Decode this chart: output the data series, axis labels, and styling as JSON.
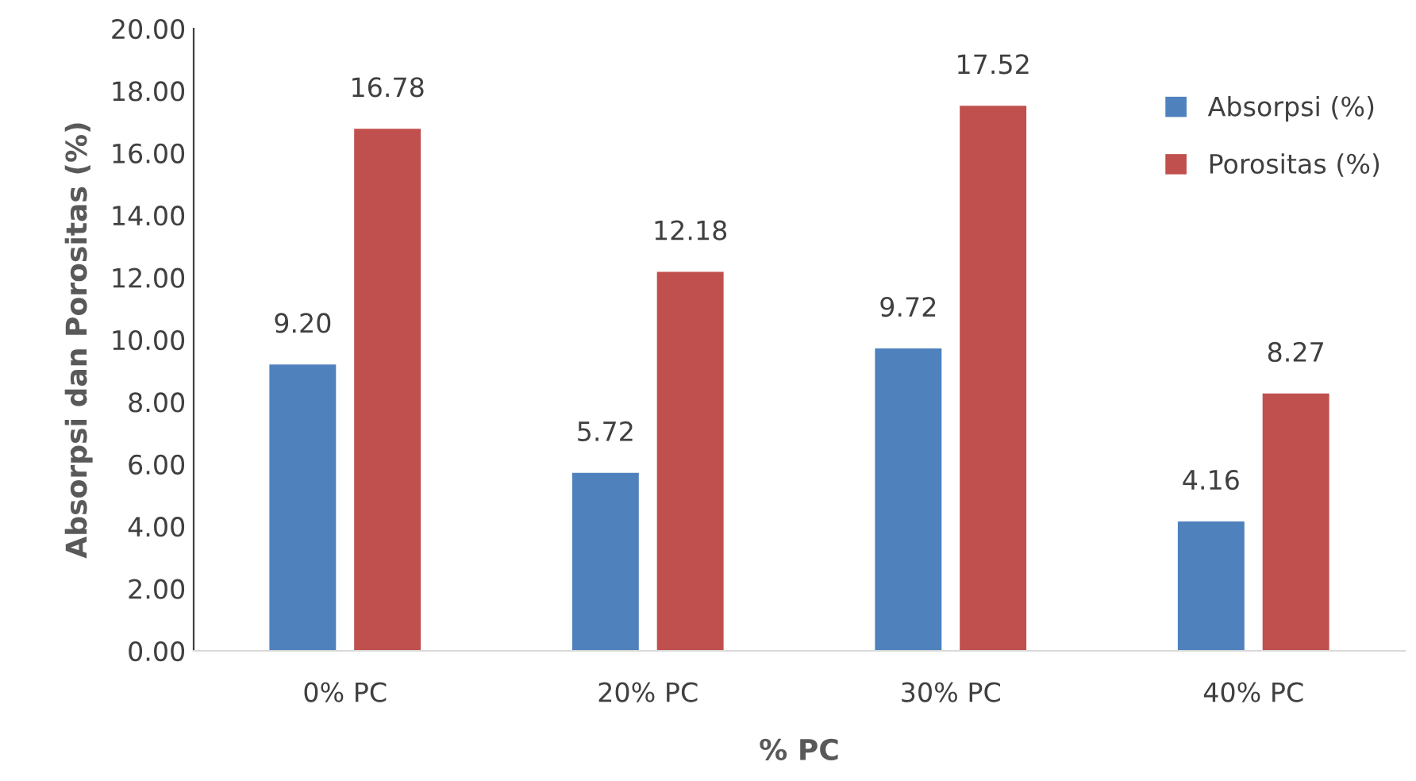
{
  "chart_data": {
    "type": "bar",
    "xlabel": "% PC",
    "ylabel": "Absorpsi dan Porositas (%)",
    "categories": [
      "0% PC",
      "20% PC",
      "30% PC",
      "40% PC"
    ],
    "series": [
      {
        "name": "Absorpsi (%)",
        "color": "#4f81bd",
        "values": [
          9.2,
          5.72,
          9.72,
          4.16
        ],
        "value_labels": [
          "9.20",
          "5.72",
          "9.72",
          "4.16"
        ]
      },
      {
        "name": "Porositas (%)",
        "color": "#c0504d",
        "values": [
          16.78,
          12.18,
          17.52,
          8.27
        ],
        "value_labels": [
          "16.78",
          "12.18",
          "17.52",
          "8.27"
        ]
      }
    ],
    "ylim": [
      0,
      20
    ],
    "yticks": [
      {
        "value": 0,
        "label": "0.00"
      },
      {
        "value": 2,
        "label": "2.00"
      },
      {
        "value": 4,
        "label": "4.00"
      },
      {
        "value": 6,
        "label": "6.00"
      },
      {
        "value": 8,
        "label": "8.00"
      },
      {
        "value": 10,
        "label": "10.00"
      },
      {
        "value": 12,
        "label": "12.00"
      },
      {
        "value": 14,
        "label": "14.00"
      },
      {
        "value": 16,
        "label": "16.00"
      },
      {
        "value": 18,
        "label": "18.00"
      },
      {
        "value": 20,
        "label": "20.00"
      }
    ],
    "grid": false,
    "legend": "top right"
  }
}
